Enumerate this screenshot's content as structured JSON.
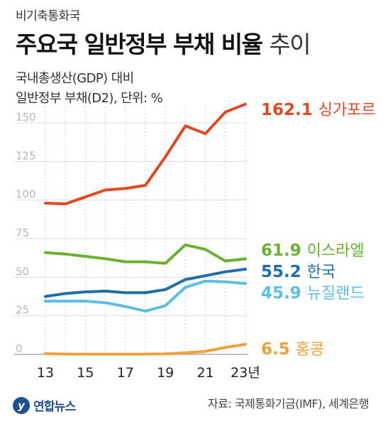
{
  "header": {
    "kicker": "비기축통화국",
    "title_bold": "주요국 일반정부 부채 비율",
    "title_light": "추이",
    "subtitle1": "국내총생산(GDP) 대비",
    "subtitle2": "일반정부 부채(D2), 단위: %"
  },
  "footer": {
    "logo_text": "연합뉴스",
    "source": "자료: 국제통화기금(IMF), 세계은행"
  },
  "chart_data": {
    "type": "line",
    "x": [
      13,
      14,
      15,
      16,
      17,
      18,
      19,
      20,
      21,
      22,
      23
    ],
    "x_tick_labels": [
      "13",
      "15",
      "17",
      "19",
      "21",
      "23년"
    ],
    "x_tick_values": [
      13,
      15,
      17,
      19,
      21,
      23
    ],
    "ylim": [
      0,
      170
    ],
    "y_ticks": [
      0,
      25,
      50,
      75,
      100,
      125,
      150
    ],
    "grid": true,
    "series": [
      {
        "name": "싱가포르",
        "color": "#e04a22",
        "label_value": "162.1",
        "values": [
          98,
          97.5,
          102,
          106.5,
          107.5,
          109.5,
          128,
          148,
          143,
          157,
          162.1
        ]
      },
      {
        "name": "이스라엘",
        "color": "#6ab130",
        "label_value": "61.9",
        "values": [
          66,
          65,
          63.5,
          62,
          60,
          60,
          59,
          71,
          68,
          60.5,
          61.9
        ]
      },
      {
        "name": "한국",
        "color": "#1f6ea8",
        "label_value": "55.2",
        "values": [
          37.5,
          39.5,
          40.5,
          41,
          40,
          40,
          42,
          48.5,
          51,
          53.5,
          55.2
        ]
      },
      {
        "name": "뉴질랜드",
        "color": "#5bc0e8",
        "label_value": "45.9",
        "values": [
          34.5,
          34.5,
          34.5,
          33.5,
          31,
          28,
          31.5,
          43.5,
          47.5,
          47,
          45.9
        ]
      },
      {
        "name": "홍콩",
        "color": "#f0a23a",
        "label_value": "6.5",
        "values": [
          0.5,
          0.2,
          0.2,
          0.2,
          0.2,
          0.2,
          0.3,
          1.0,
          2.0,
          4.5,
          6.5
        ]
      }
    ]
  }
}
